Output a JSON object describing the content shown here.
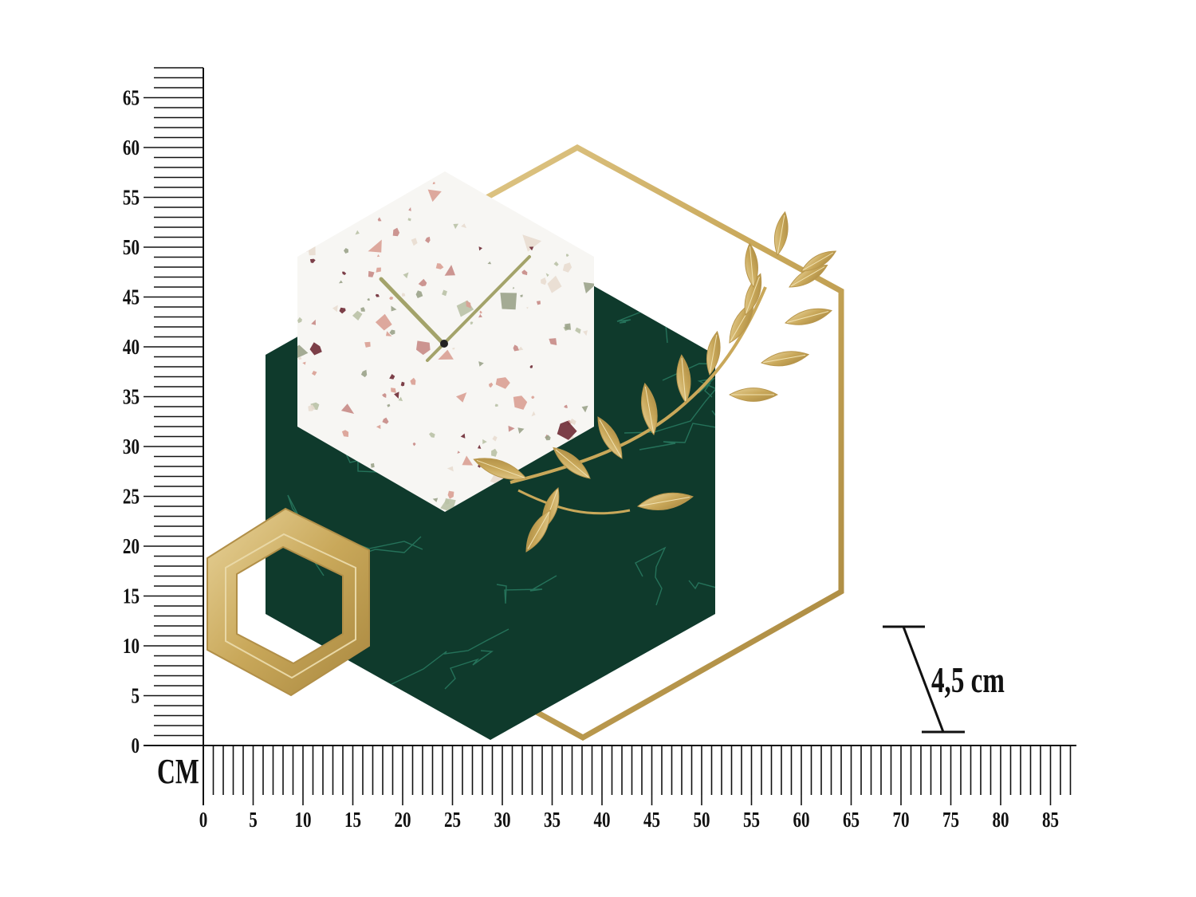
{
  "rulers": {
    "unit_label": "CM",
    "vertical_labels": [
      "0",
      "5",
      "10",
      "15",
      "20",
      "25",
      "30",
      "35",
      "40",
      "45",
      "50",
      "55",
      "60",
      "65"
    ],
    "horizontal_labels": [
      "0",
      "5",
      "10",
      "15",
      "20",
      "25",
      "30",
      "35",
      "40",
      "45",
      "50",
      "55",
      "60",
      "65",
      "70",
      "75",
      "80",
      "85"
    ]
  },
  "depth_dimension": {
    "label": "4,5 cm"
  },
  "colors": {
    "gold": "#c9a85a",
    "gold_light": "#e6cf8e",
    "marble_green": "#0f3a2c",
    "marble_vein": "#2f8a6e",
    "terrazzo_base": "#f7f6f3",
    "clock_hands": "#a3a36a",
    "chips": [
      "#d9a094",
      "#b9c2a6",
      "#6e2b35",
      "#e8ddd0",
      "#9aa38a",
      "#c78b86"
    ]
  }
}
